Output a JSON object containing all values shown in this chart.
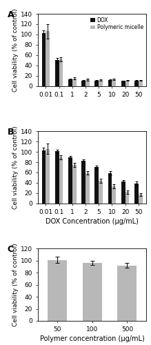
{
  "panel_A": {
    "categories": [
      "0.01",
      "0.1",
      "1",
      "2",
      "5",
      "10",
      "20",
      "50"
    ],
    "dox_values": [
      103,
      50,
      13,
      11,
      11,
      12,
      10,
      11
    ],
    "dox_errors": [
      5,
      5,
      2,
      1,
      1,
      1,
      1,
      1
    ],
    "pm_values": [
      106,
      52,
      15,
      13,
      12,
      13,
      11,
      11
    ],
    "pm_errors": [
      14,
      4,
      2,
      2,
      1,
      1,
      1,
      1
    ],
    "ylim": [
      0,
      140
    ],
    "yticks": [
      0,
      20,
      40,
      60,
      80,
      100,
      120,
      140
    ],
    "ylabel": "Cell viability (% of control)",
    "label": "A"
  },
  "panel_B": {
    "categories": [
      "0.01",
      "0.1",
      "1",
      "2",
      "5",
      "10",
      "20",
      "50"
    ],
    "dox_values": [
      103,
      101,
      89,
      83,
      70,
      58,
      42,
      39
    ],
    "dox_errors": [
      5,
      3,
      3,
      3,
      4,
      4,
      3,
      4
    ],
    "pm_values": [
      106,
      90,
      75,
      59,
      44,
      33,
      22,
      17
    ],
    "pm_errors": [
      10,
      4,
      4,
      3,
      4,
      4,
      3,
      3
    ],
    "ylim": [
      0,
      140
    ],
    "yticks": [
      0,
      20,
      40,
      60,
      80,
      100,
      120,
      140
    ],
    "ylabel": "Cell viability (% of control)",
    "xlabel": "DOX Concentration (μg/mL)",
    "label": "B"
  },
  "panel_C": {
    "categories": [
      "50",
      "100",
      "500"
    ],
    "pm_values": [
      101,
      96,
      92
    ],
    "pm_errors": [
      5,
      3,
      4
    ],
    "ylim": [
      0,
      120
    ],
    "yticks": [
      0,
      20,
      40,
      60,
      80,
      100,
      120
    ],
    "ylabel": "Cell viability (% of control)",
    "xlabel": "Polymer concentration (μg/mL)",
    "label": "C"
  },
  "dox_color": "#111111",
  "pm_color": "#b8b8b8",
  "bar_width": 0.3,
  "legend_labels": [
    "DOX",
    "Polymeric micelle"
  ],
  "tick_fontsize": 6.5,
  "ylabel_fontsize": 6.5,
  "xlabel_fontsize": 7,
  "label_fontsize": 9
}
